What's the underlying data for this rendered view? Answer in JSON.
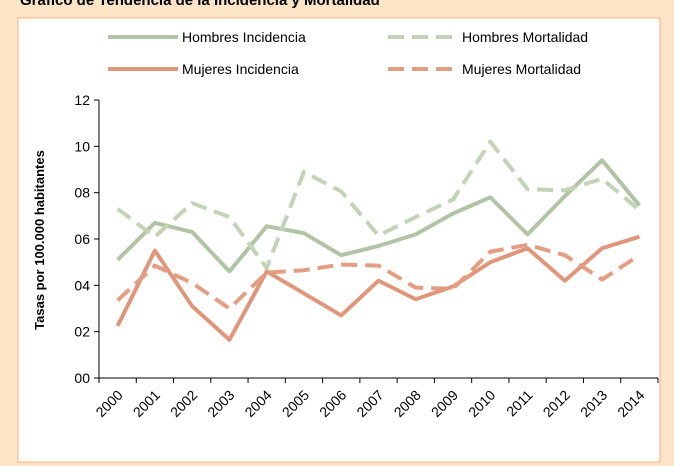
{
  "chart_data": {
    "type": "line",
    "title": "Gráfico de Tendencia de la Incidencia y Mortalidad",
    "y_label": "Tasas por 100.000 habitantes",
    "categories": [
      "2000",
      "2001",
      "2002",
      "2003",
      "2004",
      "2005",
      "2006",
      "2007",
      "2008",
      "2009",
      "2010",
      "2011",
      "2012",
      "2013",
      "2014"
    ],
    "series": [
      {
        "name": "Hombres Incidencia",
        "color": "#b2c4a6",
        "dash": false,
        "values": [
          5.1,
          6.7,
          6.3,
          4.6,
          6.55,
          6.25,
          5.3,
          5.7,
          6.2,
          7.1,
          7.8,
          6.2,
          7.85,
          9.4,
          7.45
        ]
      },
      {
        "name": "Hombres Mortalidad",
        "color": "#c3d3b7",
        "dash": true,
        "values": [
          7.3,
          6.1,
          7.55,
          6.95,
          4.75,
          8.9,
          8.05,
          6.15,
          6.95,
          7.7,
          10.2,
          8.15,
          8.1,
          8.6,
          7.25
        ]
      },
      {
        "name": "Mujeres Incidencia",
        "color": "#e0967a",
        "dash": false,
        "values": [
          2.25,
          5.5,
          3.1,
          1.65,
          4.6,
          3.65,
          2.7,
          4.2,
          3.4,
          3.95,
          5.0,
          5.6,
          4.2,
          5.6,
          6.1
        ]
      },
      {
        "name": "Mujeres Mortalidad",
        "color": "#e39d82",
        "dash": true,
        "values": [
          3.35,
          4.85,
          4.1,
          3.0,
          4.55,
          4.65,
          4.9,
          4.85,
          3.9,
          3.85,
          5.45,
          5.75,
          5.3,
          4.25,
          5.3
        ]
      }
    ],
    "ylim": [
      0,
      12
    ],
    "yticks": [
      {
        "value": 0,
        "label": "00"
      },
      {
        "value": 2,
        "label": "02"
      },
      {
        "value": 4,
        "label": "04"
      },
      {
        "value": 6,
        "label": "06"
      },
      {
        "value": 8,
        "label": "08"
      },
      10,
      12
    ],
    "grid": false
  }
}
